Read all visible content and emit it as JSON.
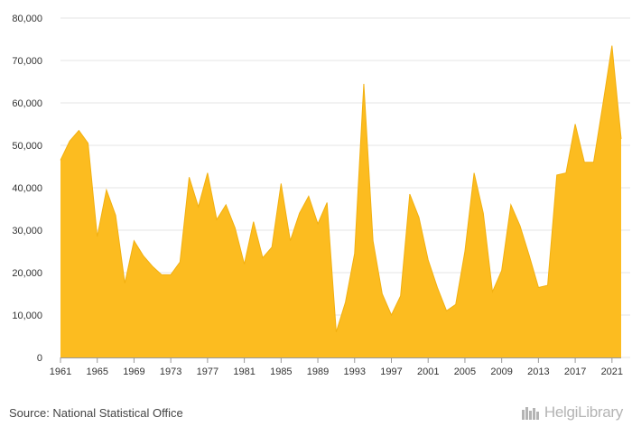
{
  "chart_data": {
    "type": "area",
    "x": [
      1961,
      1962,
      1963,
      1964,
      1965,
      1966,
      1967,
      1968,
      1969,
      1970,
      1971,
      1972,
      1973,
      1974,
      1975,
      1976,
      1977,
      1978,
      1979,
      1980,
      1981,
      1982,
      1983,
      1984,
      1985,
      1986,
      1987,
      1988,
      1989,
      1990,
      1991,
      1992,
      1993,
      1994,
      1995,
      1996,
      1997,
      1998,
      1999,
      2000,
      2001,
      2002,
      2003,
      2004,
      2005,
      2006,
      2007,
      2008,
      2009,
      2010,
      2011,
      2012,
      2013,
      2014,
      2015,
      2016,
      2017,
      2018,
      2019,
      2020,
      2021,
      2022
    ],
    "series": [
      {
        "values": [
          46500,
          51000,
          53500,
          50500,
          28500,
          39500,
          33500,
          17500,
          27500,
          24000,
          21500,
          19500,
          19500,
          22500,
          42500,
          35500,
          43500,
          32500,
          36000,
          30500,
          22000,
          32000,
          23500,
          26000,
          41000,
          27500,
          34000,
          38000,
          31500,
          36500,
          6000,
          13000,
          24500,
          64500,
          27500,
          15000,
          10000,
          14500,
          38500,
          33000,
          23000,
          16500,
          11000,
          12500,
          25000,
          43500,
          34000,
          15500,
          20500,
          36000,
          31000,
          24000,
          16500,
          17000,
          43000,
          43500,
          55000,
          46000,
          46000,
          59500,
          73500,
          51500
        ],
        "color": "#fcbc20"
      }
    ],
    "xticks": [
      "1961",
      "1965",
      "1969",
      "1973",
      "1977",
      "1981",
      "1985",
      "1989",
      "1993",
      "1997",
      "2001",
      "2005",
      "2009",
      "2013",
      "2017",
      "2021"
    ],
    "yticks": [
      "0",
      "10,000",
      "20,000",
      "30,000",
      "40,000",
      "50,000",
      "60,000",
      "70,000",
      "80,000"
    ],
    "ylim": [
      0,
      80000
    ],
    "grid": true,
    "fill_color": "#fcbc20",
    "stroke_color": "#f2b010"
  },
  "footer": {
    "source": "Source: National Statistical Office",
    "logo_text": "HelgiLibrary"
  }
}
